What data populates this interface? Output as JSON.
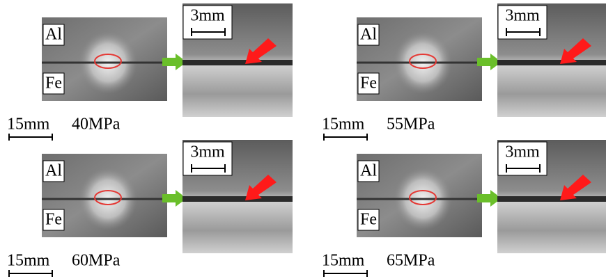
{
  "panels": [
    {
      "upper_metal": "Al",
      "lower_metal": "Fe",
      "overview_scale": "15mm",
      "detail_scale": "3mm",
      "pressure": "40MPa"
    },
    {
      "upper_metal": "Al",
      "lower_metal": "Fe",
      "overview_scale": "15mm",
      "detail_scale": "3mm",
      "pressure": "55MPa"
    },
    {
      "upper_metal": "Al",
      "lower_metal": "Fe",
      "overview_scale": "15mm",
      "detail_scale": "3mm",
      "pressure": "60MPa"
    },
    {
      "upper_metal": "Al",
      "lower_metal": "Fe",
      "overview_scale": "15mm",
      "detail_scale": "3mm",
      "pressure": "65MPa"
    }
  ]
}
